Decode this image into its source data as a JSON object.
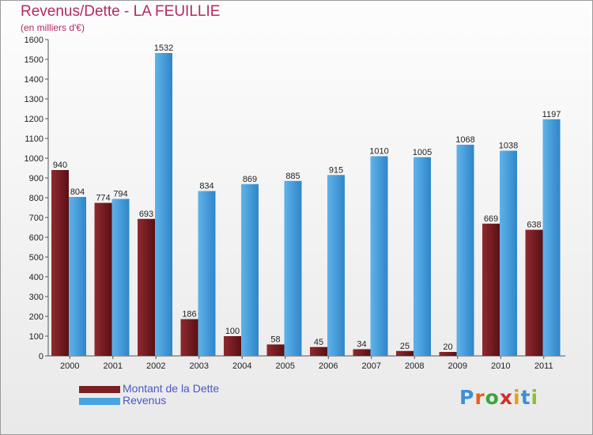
{
  "header": {
    "title": "Revenus/Dette - LA FEUILLIE",
    "subtitle": "(en milliers d'€)"
  },
  "chart_data": {
    "type": "bar",
    "title": "Revenus/Dette - LA FEUILLIE",
    "ylabel": "(en milliers d'€)",
    "xlabel": "",
    "ylim": [
      0,
      1600
    ],
    "ytick_step": 100,
    "grid": false,
    "legend_position": "bottom-left",
    "categories": [
      "2000",
      "2001",
      "2002",
      "2003",
      "2004",
      "2005",
      "2006",
      "2007",
      "2008",
      "2009",
      "2010",
      "2011"
    ],
    "series": [
      {
        "name": "Montant de la Dette",
        "color": "#7a1f24",
        "values": [
          940,
          774,
          693,
          186,
          100,
          58,
          45,
          34,
          25,
          20,
          669,
          638
        ]
      },
      {
        "name": "Revenus",
        "color": "#4aa3e0",
        "values": [
          804,
          794,
          1532,
          834,
          869,
          885,
          915,
          1010,
          1005,
          1068,
          1038,
          1197
        ]
      }
    ]
  },
  "legend": {
    "items": [
      {
        "label": "Montant de la Dette",
        "color": "#7a1f24"
      },
      {
        "label": "Revenus",
        "color": "#4aa3e0"
      }
    ]
  },
  "logo": {
    "text": "Proxiti",
    "letter_colors": [
      "#3f8fd6",
      "#e8601c",
      "#3ba53b",
      "#d12f2f",
      "#e0a21a",
      "#3f8fd6",
      "#8fbf2f"
    ]
  }
}
